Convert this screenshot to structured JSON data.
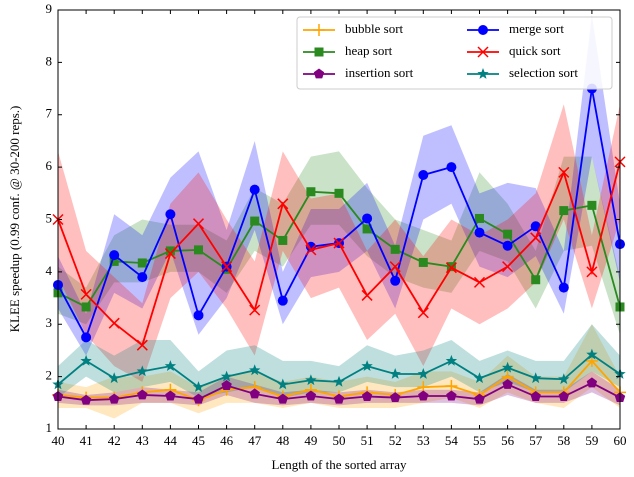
{
  "chart_data": {
    "type": "line",
    "xlabel": "Length of the sorted array",
    "ylabel": "KLEE speedup (0.99 conf. @ 30-200 reps.)",
    "x": [
      40,
      41,
      42,
      43,
      44,
      45,
      46,
      47,
      48,
      49,
      50,
      51,
      52,
      53,
      54,
      55,
      56,
      57,
      58,
      59,
      60
    ],
    "xlim": [
      40,
      60
    ],
    "xticks": [
      40,
      41,
      42,
      43,
      44,
      45,
      46,
      47,
      48,
      49,
      50,
      51,
      52,
      53,
      54,
      55,
      56,
      57,
      58,
      59,
      60
    ],
    "ylim": [
      1,
      9
    ],
    "yticks": [
      1,
      2,
      3,
      4,
      5,
      6,
      7,
      8,
      9
    ],
    "legend": "upper right",
    "legend_columns": 2,
    "series": [
      {
        "name": "bubble sort",
        "color": "#ffa500",
        "marker": "plus",
        "values": [
          1.65,
          1.6,
          1.6,
          1.7,
          1.75,
          1.55,
          1.75,
          1.8,
          1.62,
          1.75,
          1.62,
          1.7,
          1.65,
          1.8,
          1.82,
          1.65,
          2.0,
          1.7,
          1.7,
          2.3,
          1.7
        ],
        "lower": [
          1.4,
          1.4,
          1.2,
          1.5,
          1.5,
          1.3,
          1.5,
          1.5,
          1.4,
          1.5,
          1.4,
          1.4,
          1.4,
          1.5,
          1.6,
          1.4,
          1.7,
          1.5,
          1.4,
          1.8,
          1.4
        ],
        "upper": [
          1.9,
          1.8,
          2.0,
          2.0,
          2.1,
          1.8,
          2.0,
          2.1,
          1.9,
          2.0,
          1.9,
          2.0,
          1.9,
          2.1,
          2.1,
          1.9,
          2.4,
          2.0,
          2.0,
          3.0,
          2.0
        ]
      },
      {
        "name": "heap sort",
        "color": "#2a8a1f",
        "marker": "square",
        "values": [
          3.6,
          3.33,
          4.2,
          4.17,
          4.4,
          4.42,
          4.05,
          4.97,
          4.6,
          5.53,
          5.5,
          4.82,
          4.43,
          4.18,
          4.1,
          5.02,
          4.72,
          3.85,
          5.17,
          5.27,
          3.33
        ],
        "lower": [
          3.2,
          3.0,
          3.8,
          3.8,
          4.0,
          4.0,
          3.6,
          4.4,
          4.1,
          4.9,
          4.9,
          4.3,
          3.9,
          3.7,
          3.6,
          4.4,
          4.2,
          3.3,
          4.4,
          4.5,
          2.8
        ],
        "upper": [
          4.1,
          3.7,
          4.7,
          5.0,
          4.9,
          4.9,
          4.6,
          5.6,
          5.3,
          6.2,
          6.3,
          5.6,
          5.0,
          4.8,
          4.6,
          5.9,
          5.3,
          4.4,
          6.2,
          6.2,
          3.9
        ]
      },
      {
        "name": "insertion sort",
        "color": "#800080",
        "marker": "pentagon",
        "values": [
          1.62,
          1.55,
          1.57,
          1.65,
          1.63,
          1.57,
          1.83,
          1.67,
          1.57,
          1.63,
          1.57,
          1.62,
          1.6,
          1.63,
          1.63,
          1.57,
          1.85,
          1.62,
          1.62,
          1.88,
          1.6
        ],
        "lower": [
          1.5,
          1.45,
          1.45,
          1.5,
          1.5,
          1.45,
          1.65,
          1.5,
          1.45,
          1.5,
          1.45,
          1.5,
          1.5,
          1.5,
          1.5,
          1.45,
          1.65,
          1.5,
          1.5,
          1.7,
          1.45
        ],
        "upper": [
          1.75,
          1.65,
          1.7,
          1.8,
          1.75,
          1.7,
          2.0,
          1.85,
          1.7,
          1.75,
          1.7,
          1.75,
          1.7,
          1.75,
          1.75,
          1.7,
          2.05,
          1.75,
          1.75,
          2.1,
          1.75
        ]
      },
      {
        "name": "merge sort",
        "color": "#0000ff",
        "marker": "circle",
        "values": [
          3.75,
          2.75,
          4.32,
          3.9,
          5.1,
          3.17,
          4.1,
          5.57,
          3.45,
          4.48,
          4.55,
          5.02,
          3.83,
          5.85,
          6.0,
          4.75,
          4.5,
          4.87,
          3.7,
          7.5,
          4.53
        ],
        "lower": [
          3.3,
          2.4,
          3.6,
          3.3,
          4.4,
          2.8,
          3.5,
          4.8,
          3.0,
          3.9,
          4.0,
          4.4,
          3.3,
          5.0,
          5.3,
          4.1,
          3.9,
          4.3,
          3.2,
          6.2,
          3.8
        ],
        "upper": [
          4.3,
          3.2,
          5.1,
          4.7,
          5.8,
          6.3,
          4.8,
          6.5,
          4.0,
          5.2,
          5.2,
          5.7,
          4.5,
          6.6,
          6.8,
          5.5,
          5.7,
          5.6,
          4.4,
          8.9,
          5.3
        ]
      },
      {
        "name": "quick sort",
        "color": "#ff0000",
        "marker": "x",
        "values": [
          5.0,
          3.57,
          3.02,
          2.6,
          4.35,
          4.92,
          4.1,
          3.27,
          5.3,
          4.42,
          4.55,
          3.55,
          4.1,
          3.22,
          4.08,
          3.8,
          4.1,
          4.65,
          5.9,
          4.0,
          6.1
        ],
        "lower": [
          3.9,
          2.8,
          2.2,
          1.9,
          3.5,
          4.0,
          3.3,
          2.4,
          4.4,
          3.5,
          3.7,
          2.7,
          3.2,
          2.2,
          3.3,
          3.0,
          3.3,
          3.8,
          5.0,
          3.3,
          5.0
        ],
        "upper": [
          6.3,
          4.4,
          3.9,
          3.4,
          5.3,
          5.9,
          5.0,
          4.2,
          6.3,
          5.4,
          5.5,
          4.4,
          5.0,
          4.3,
          5.0,
          4.7,
          5.0,
          5.5,
          7.2,
          4.7,
          7.2
        ]
      },
      {
        "name": "selection sort",
        "color": "#008080",
        "marker": "star",
        "values": [
          1.85,
          2.3,
          1.97,
          2.1,
          2.2,
          1.8,
          2.0,
          2.12,
          1.85,
          1.93,
          1.9,
          2.2,
          2.05,
          2.05,
          2.3,
          1.97,
          2.17,
          1.97,
          1.95,
          2.42,
          2.05
        ],
        "lower": [
          1.6,
          2.0,
          1.7,
          1.8,
          1.9,
          1.6,
          1.7,
          1.8,
          1.6,
          1.7,
          1.7,
          1.9,
          1.8,
          1.8,
          2.0,
          1.7,
          1.9,
          1.7,
          1.7,
          2.1,
          1.8
        ],
        "upper": [
          2.2,
          2.7,
          2.4,
          2.7,
          2.7,
          2.1,
          2.5,
          2.6,
          2.3,
          2.3,
          2.2,
          2.6,
          2.4,
          2.5,
          2.7,
          2.3,
          2.5,
          2.3,
          2.3,
          3.0,
          2.4
        ]
      }
    ]
  }
}
